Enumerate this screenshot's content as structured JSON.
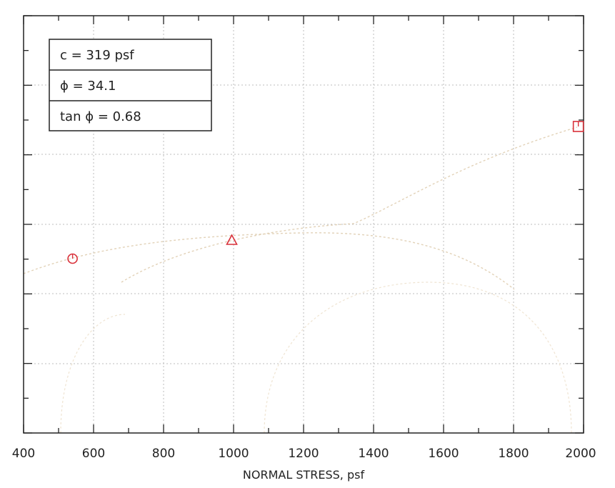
{
  "chart_data": {
    "type": "scatter",
    "title": "",
    "xlabel": "NORMAL STRESS, psf",
    "ylabel": "",
    "xlim": [
      400,
      2000
    ],
    "x_ticks": [
      "400",
      "600",
      "800",
      "1000",
      "1200",
      "1400",
      "1600",
      "1800",
      "2000"
    ],
    "grid": true,
    "legend": {
      "position": "top-left",
      "entries": [
        "c = 319 psf",
        "ϕ = 34.1",
        "tan ϕ = 0.68"
      ]
    },
    "series": [
      {
        "marker": "circle",
        "color": "#d9303a",
        "x": 540
      },
      {
        "marker": "triangle",
        "color": "#d9303a",
        "x": 995
      },
      {
        "marker": "square",
        "color": "#d9303a",
        "x": 1985
      }
    ]
  }
}
